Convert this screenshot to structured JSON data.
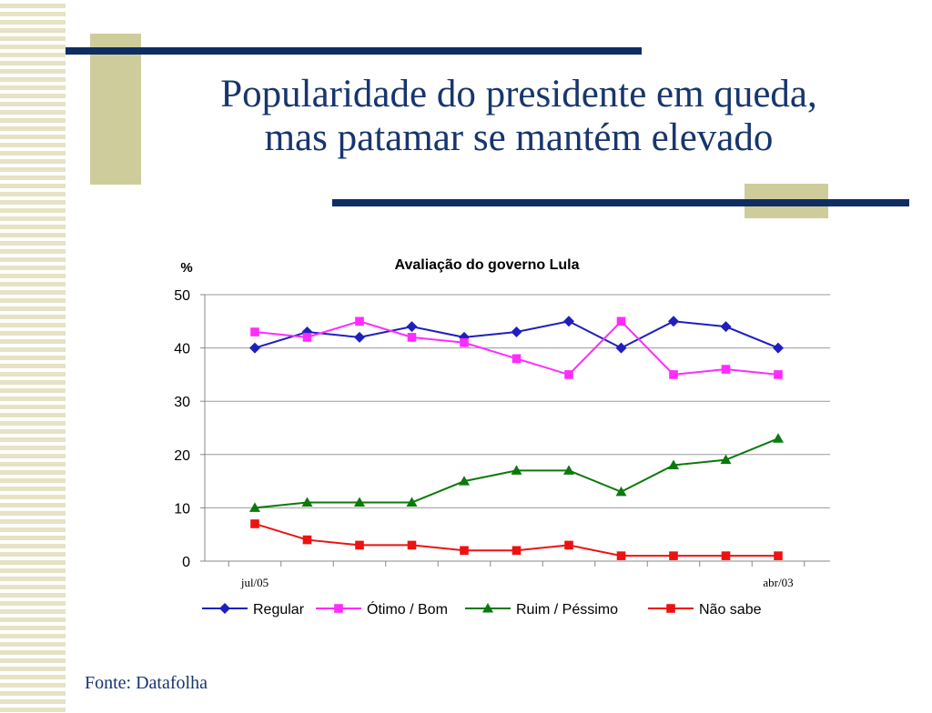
{
  "slide": {
    "title_line1": "Popularidade do presidente em queda,",
    "title_line2": "mas patamar se mantém elevado",
    "source": "Fonte: Datafolha"
  },
  "colors": {
    "title": "#17356e",
    "accent_bar": "#0e2e63",
    "accent_box": "#cfcc9c"
  },
  "chart_data": {
    "type": "line",
    "title": "Avaliação do governo Lula",
    "ylabel": "%",
    "ylim": [
      0,
      50
    ],
    "yticks": [
      0,
      10,
      20,
      30,
      40,
      50
    ],
    "grid": true,
    "legend_position": "bottom",
    "x_labels": [
      "jul/05",
      "",
      "",
      "",
      "",
      "",
      "",
      "",
      "",
      "",
      "abr/03"
    ],
    "series": [
      {
        "name": "Regular",
        "color": "#1f1fbf",
        "marker": "diamond",
        "values": [
          40,
          43,
          42,
          44,
          42,
          43,
          45,
          40,
          45,
          44,
          40
        ]
      },
      {
        "name": "Ótimo / Bom",
        "color": "#ff2bff",
        "marker": "square",
        "values": [
          43,
          42,
          45,
          42,
          41,
          38,
          35,
          45,
          35,
          36,
          35
        ]
      },
      {
        "name": "Ruim / Péssimo",
        "color": "#0b7a0b",
        "marker": "triangle",
        "values": [
          10,
          11,
          11,
          11,
          15,
          17,
          17,
          13,
          18,
          19,
          23
        ]
      },
      {
        "name": "Não sabe",
        "color": "#ee1111",
        "marker": "square",
        "values": [
          7,
          4,
          3,
          3,
          2,
          2,
          3,
          1,
          1,
          1,
          1
        ]
      }
    ]
  }
}
